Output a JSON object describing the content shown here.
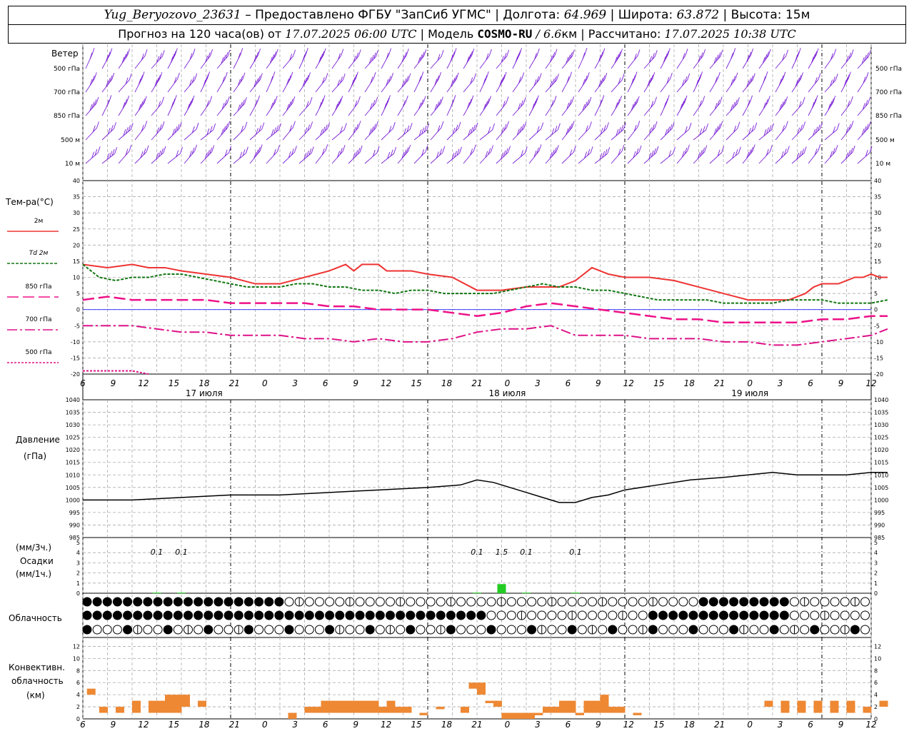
{
  "header": {
    "station": "Yug_Beryozovo_23631",
    "dash": " – ",
    "provider": "Предоставлено ФГБУ \"ЗапСиб УГМС\"",
    "sep": " | ",
    "lon_label": "Долгота: ",
    "lon_value": "64.969",
    "lat_label": "Широта: ",
    "lat_value": "63.872",
    "alt_label": "Высота: ",
    "alt_value": "15м",
    "forecast_label": "Прогноз на 120 часа(ов) от ",
    "run_time": "17.07.2025 06:00 UTC",
    "model_label": "Модель ",
    "model_name": "COSMO-RU",
    "model_res": " / 6.6",
    "model_res_unit": "км",
    "calc_label": "Рассчитано: ",
    "calc_time": "17.07.2025 10:38 UTC"
  },
  "axis": {
    "hour_ticks": [
      "6",
      "9",
      "12",
      "15",
      "18",
      "21",
      "0",
      "3",
      "6",
      "9",
      "12",
      "15",
      "18",
      "21",
      "0",
      "3",
      "6",
      "9",
      "12",
      "15",
      "18",
      "21",
      "0",
      "3",
      "6",
      "9",
      "12"
    ],
    "day_labels": [
      {
        "label": "17 июля",
        "hour": 12
      },
      {
        "label": "18 июля",
        "hour": 42
      },
      {
        "label": "19 июля",
        "hour": 66
      }
    ]
  },
  "wind": {
    "title": "Ветер",
    "levels": [
      "500 гПа",
      "700 гПа",
      "850 гПа",
      "500 м",
      "10  м"
    ]
  },
  "temp": {
    "title": "Тем-ра(°C)",
    "legend": [
      "2м",
      "Td  2м",
      "850 гПа",
      "700 гПа",
      "500 гПа"
    ]
  },
  "pressure": {
    "title": "Давление",
    "unit": "(гПа)"
  },
  "precip": {
    "unit_top": "(мм/3ч.)",
    "title": "Осадки",
    "unit_bottom": "(мм/1ч.)",
    "labels": [
      {
        "text": "0.1",
        "hour": 9
      },
      {
        "text": "0.1",
        "hour": 12
      },
      {
        "text": "0.1",
        "hour": 48
      },
      {
        "text": "1.5",
        "hour": 51
      },
      {
        "text": "0.1",
        "hour": 54
      },
      {
        "text": "0.1",
        "hour": 60
      }
    ]
  },
  "cloud": {
    "title": "Облачность"
  },
  "conv": {
    "title1": "Конвективн.",
    "title2": "облачность",
    "unit": "(км)"
  },
  "colors": {
    "wind": "#7a1fd6",
    "t2m": "#ee3333",
    "td": "#117711",
    "t850": "#ee1188",
    "t700": "#dd1188",
    "t500": "#dd1188",
    "precip": "#22cc22",
    "conv": "#ee8833"
  },
  "chart_data": [
    {
      "type": "line",
      "title": "Тем-ра(°C)",
      "x_hours_from": "17.07.2025 06:00 UTC",
      "ylim": [
        -20,
        40
      ],
      "series": [
        {
          "name": "2м",
          "x": [
            0,
            3,
            6,
            8,
            10,
            12,
            15,
            18,
            21,
            24,
            27,
            30,
            32,
            33,
            34,
            35,
            36,
            37,
            38,
            39,
            40,
            42,
            45,
            48,
            51,
            54,
            56,
            58,
            60,
            62,
            64,
            66,
            69,
            72,
            75,
            78,
            81,
            84,
            86,
            87,
            88,
            89,
            90,
            91,
            92,
            93,
            94,
            95,
            96,
            97,
            98
          ],
          "y": [
            14,
            13,
            14,
            13,
            13,
            12,
            11,
            10,
            8,
            8,
            10,
            12,
            14,
            12,
            14,
            14,
            14,
            12,
            12,
            12,
            12,
            11,
            10,
            6,
            6,
            7,
            7,
            7,
            9,
            13,
            11,
            10,
            10,
            9,
            7,
            5,
            3,
            3,
            3,
            4,
            5,
            7,
            8,
            8,
            8,
            9,
            10,
            10,
            11,
            10,
            10
          ]
        },
        {
          "name": "Td  2м",
          "x": [
            0,
            2,
            4,
            6,
            8,
            10,
            12,
            14,
            16,
            18,
            20,
            22,
            24,
            26,
            28,
            30,
            32,
            34,
            36,
            38,
            40,
            42,
            44,
            46,
            48,
            50,
            52,
            54,
            56,
            58,
            60,
            62,
            64,
            66,
            68,
            70,
            72,
            74,
            76,
            78,
            80,
            82,
            84,
            86,
            88,
            90,
            92,
            94,
            96,
            98
          ],
          "y": [
            14,
            10,
            9,
            10,
            10,
            11,
            11,
            10,
            9,
            8,
            7,
            7,
            7,
            8,
            8,
            7,
            7,
            6,
            6,
            5,
            6,
            6,
            5,
            5,
            5,
            5,
            6,
            7,
            8,
            7,
            7,
            6,
            6,
            5,
            4,
            3,
            3,
            3,
            3,
            2,
            2,
            2,
            2,
            3,
            3,
            3,
            2,
            2,
            2,
            3
          ]
        },
        {
          "name": "850 гПа",
          "x": [
            0,
            3,
            6,
            9,
            12,
            15,
            18,
            21,
            24,
            27,
            30,
            33,
            36,
            39,
            42,
            45,
            48,
            51,
            54,
            57,
            60,
            63,
            66,
            69,
            72,
            75,
            78,
            81,
            84,
            87,
            90,
            93,
            96,
            98
          ],
          "y": [
            3,
            4,
            3,
            3,
            3,
            3,
            2,
            2,
            2,
            2,
            1,
            1,
            0,
            0,
            0,
            -1,
            -2,
            -1,
            1,
            2,
            1,
            0,
            -1,
            -2,
            -3,
            -3,
            -4,
            -4,
            -4,
            -4,
            -3,
            -3,
            -2,
            -2
          ]
        },
        {
          "name": "700 гПа",
          "x": [
            0,
            3,
            6,
            9,
            12,
            15,
            18,
            21,
            24,
            27,
            30,
            33,
            36,
            39,
            42,
            45,
            48,
            51,
            54,
            57,
            60,
            63,
            66,
            69,
            72,
            75,
            78,
            81,
            84,
            87,
            90,
            93,
            96,
            98
          ],
          "y": [
            -5,
            -5,
            -5,
            -6,
            -7,
            -7,
            -8,
            -8,
            -8,
            -9,
            -9,
            -10,
            -9,
            -10,
            -10,
            -9,
            -7,
            -6,
            -6,
            -5,
            -8,
            -8,
            -8,
            -9,
            -9,
            -9,
            -10,
            -10,
            -11,
            -11,
            -10,
            -9,
            -8,
            -6
          ]
        },
        {
          "name": "500 гПа",
          "x": [
            0,
            2,
            4,
            6,
            8
          ],
          "y": [
            -19,
            -19,
            -19,
            -19,
            -20
          ]
        }
      ]
    },
    {
      "type": "line",
      "title": "Давление",
      "ylim": [
        985,
        1040
      ],
      "series": [
        {
          "name": "",
          "x": [
            0,
            6,
            12,
            18,
            24,
            30,
            36,
            42,
            46,
            48,
            50,
            52,
            54,
            56,
            58,
            60,
            62,
            64,
            66,
            70,
            74,
            78,
            81,
            84,
            87,
            90,
            93,
            96,
            98
          ],
          "y": [
            1000,
            1000,
            1001,
            1002,
            1002,
            1003,
            1004,
            1005,
            1006,
            1008,
            1007,
            1005,
            1003,
            1001,
            999,
            999,
            1001,
            1002,
            1004,
            1006,
            1008,
            1009,
            1010,
            1011,
            1010,
            1010,
            1010,
            1011,
            1011
          ]
        }
      ]
    },
    {
      "type": "bar",
      "title": "Осадки",
      "ylim": [
        0,
        5
      ],
      "x": [
        9,
        12,
        48,
        51,
        54,
        60
      ],
      "values": [
        0.1,
        0.1,
        0.1,
        1.5,
        0.1,
        0.1
      ]
    },
    {
      "type": "bar",
      "title": "Конвективн. облачность",
      "ylim": [
        0,
        13
      ],
      "bars": [
        {
          "x": 0.5,
          "bottom": 4,
          "top": 5
        },
        {
          "x": 2,
          "bottom": 1,
          "top": 2
        },
        {
          "x": 4,
          "bottom": 1,
          "top": 2
        },
        {
          "x": 6,
          "bottom": 1,
          "top": 3
        },
        {
          "x": 8,
          "bottom": 1,
          "top": 3
        },
        {
          "x": 9,
          "bottom": 1,
          "top": 3
        },
        {
          "x": 10,
          "bottom": 1,
          "top": 4
        },
        {
          "x": 11,
          "bottom": 1,
          "top": 4
        },
        {
          "x": 12,
          "bottom": 2,
          "top": 4
        },
        {
          "x": 14,
          "bottom": 2,
          "top": 3
        },
        {
          "x": 25,
          "bottom": 0,
          "top": 1
        },
        {
          "x": 27,
          "bottom": 1,
          "top": 2
        },
        {
          "x": 28,
          "bottom": 1,
          "top": 2
        },
        {
          "x": 29,
          "bottom": 1,
          "top": 3
        },
        {
          "x": 30,
          "bottom": 1,
          "top": 3
        },
        {
          "x": 31,
          "bottom": 1,
          "top": 3
        },
        {
          "x": 32,
          "bottom": 1,
          "top": 3
        },
        {
          "x": 33,
          "bottom": 1,
          "top": 3
        },
        {
          "x": 34,
          "bottom": 1,
          "top": 3
        },
        {
          "x": 35,
          "bottom": 1,
          "top": 3
        },
        {
          "x": 36,
          "bottom": 1,
          "top": 2
        },
        {
          "x": 37,
          "bottom": 1,
          "top": 3
        },
        {
          "x": 38,
          "bottom": 1,
          "top": 2
        },
        {
          "x": 39,
          "bottom": 1,
          "top": 2
        },
        {
          "x": 41,
          "bottom": 1,
          "top": 1
        },
        {
          "x": 43,
          "bottom": 2,
          "top": 2
        },
        {
          "x": 46,
          "bottom": 1,
          "top": 2
        },
        {
          "x": 47,
          "bottom": 5,
          "top": 6
        },
        {
          "x": 48,
          "bottom": 4,
          "top": 6
        },
        {
          "x": 49,
          "bottom": 3,
          "top": 3
        },
        {
          "x": 50,
          "bottom": 2,
          "top": 3
        },
        {
          "x": 51,
          "bottom": 0,
          "top": 1
        },
        {
          "x": 52,
          "bottom": 0,
          "top": 1
        },
        {
          "x": 53,
          "bottom": 0,
          "top": 1
        },
        {
          "x": 54,
          "bottom": 0,
          "top": 1
        },
        {
          "x": 55,
          "bottom": 1,
          "top": 1
        },
        {
          "x": 56,
          "bottom": 1,
          "top": 2
        },
        {
          "x": 57,
          "bottom": 1,
          "top": 2
        },
        {
          "x": 58,
          "bottom": 1,
          "top": 3
        },
        {
          "x": 59,
          "bottom": 1,
          "top": 3
        },
        {
          "x": 60,
          "bottom": 1,
          "top": 1
        },
        {
          "x": 61,
          "bottom": 1,
          "top": 3
        },
        {
          "x": 62,
          "bottom": 1,
          "top": 3
        },
        {
          "x": 63,
          "bottom": 1,
          "top": 4
        },
        {
          "x": 64,
          "bottom": 1,
          "top": 2
        },
        {
          "x": 65,
          "bottom": 1,
          "top": 2
        },
        {
          "x": 67,
          "bottom": 1,
          "top": 1
        },
        {
          "x": 83,
          "bottom": 2,
          "top": 3
        },
        {
          "x": 85,
          "bottom": 1,
          "top": 3
        },
        {
          "x": 87,
          "bottom": 1,
          "top": 3
        },
        {
          "x": 89,
          "bottom": 1,
          "top": 3
        },
        {
          "x": 91,
          "bottom": 1,
          "top": 3
        },
        {
          "x": 93,
          "bottom": 1,
          "top": 3
        },
        {
          "x": 95,
          "bottom": 1,
          "top": 2
        },
        {
          "x": 97,
          "bottom": 2,
          "top": 3
        }
      ]
    }
  ]
}
